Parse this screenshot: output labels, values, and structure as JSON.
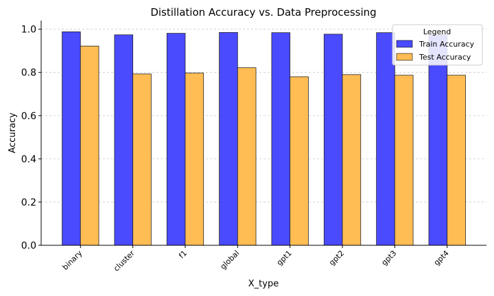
{
  "chart_data": {
    "type": "bar",
    "title": "Distillation Accuracy vs. Data Preprocessing",
    "xlabel": "X_type",
    "ylabel": "Accuracy",
    "categories": [
      "binary",
      "cluster",
      "f1",
      "global",
      "gpt1",
      "gpt2",
      "gpt3",
      "gpt4"
    ],
    "series": [
      {
        "name": "Train Accuracy",
        "color": "#4a4aff",
        "values": [
          0.988,
          0.974,
          0.981,
          0.985,
          0.984,
          0.977,
          0.984,
          0.975
        ]
      },
      {
        "name": "Test Accuracy",
        "color": "#ffbd54",
        "values": [
          0.922,
          0.793,
          0.797,
          0.822,
          0.78,
          0.79,
          0.787,
          0.787
        ]
      }
    ],
    "ylim": [
      0.0,
      1.04
    ],
    "yticks": [
      "0.0",
      "0.2",
      "0.4",
      "0.6",
      "0.8",
      "1.0"
    ],
    "grid": "y-dashed",
    "legend": {
      "title": "Legend",
      "placement": "top-right"
    }
  }
}
